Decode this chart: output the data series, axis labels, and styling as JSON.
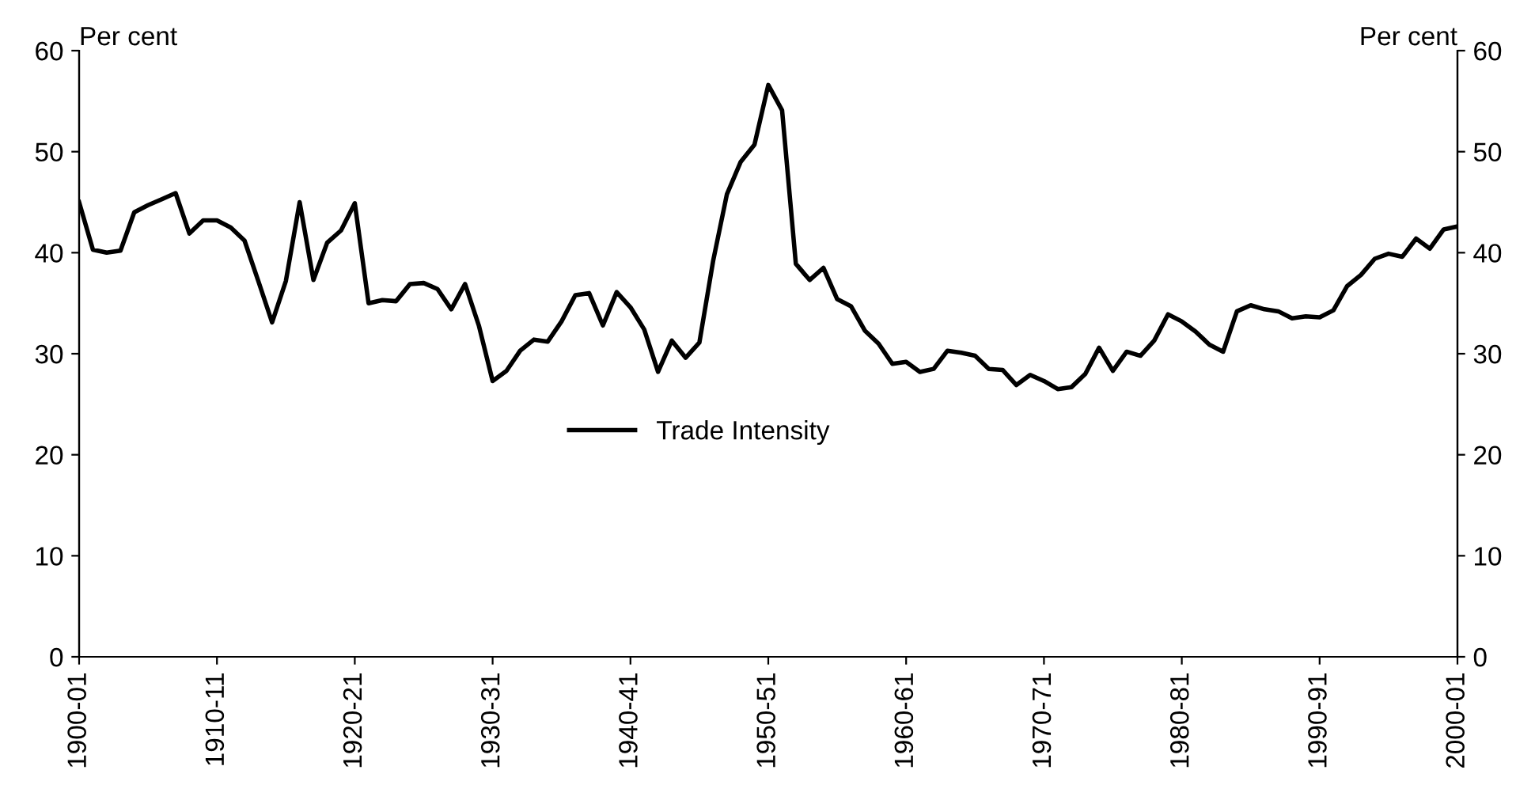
{
  "chart_data": {
    "type": "line",
    "categories": [
      "1900-01",
      null,
      null,
      null,
      null,
      null,
      null,
      null,
      null,
      null,
      "1910-11",
      null,
      null,
      null,
      null,
      null,
      null,
      null,
      null,
      null,
      "1920-21",
      null,
      null,
      null,
      null,
      null,
      null,
      null,
      null,
      null,
      "1930-31",
      null,
      null,
      null,
      null,
      null,
      null,
      null,
      null,
      null,
      "1940-41",
      null,
      null,
      null,
      null,
      null,
      null,
      null,
      null,
      null,
      "1950-51",
      null,
      null,
      null,
      null,
      null,
      null,
      null,
      null,
      null,
      "1960-61",
      null,
      null,
      null,
      null,
      null,
      null,
      null,
      null,
      null,
      "1970-71",
      null,
      null,
      null,
      null,
      null,
      null,
      null,
      null,
      null,
      "1980-81",
      null,
      null,
      null,
      null,
      null,
      null,
      null,
      null,
      null,
      "1990-91",
      null,
      null,
      null,
      null,
      null,
      null,
      null,
      null,
      null,
      "2000-01"
    ],
    "series": [
      {
        "name": "Trade Intensity",
        "color": "#000000",
        "values": [
          45,
          40.3,
          40,
          40.2,
          44,
          44.7,
          45.3,
          45.9,
          41.9,
          43.2,
          43.2,
          42.5,
          41.2,
          37.2,
          33.1,
          37.2,
          45,
          37.3,
          41,
          42.2,
          44.9,
          35,
          35.3,
          35.2,
          36.9,
          37,
          36.4,
          34.4,
          36.9,
          32.8,
          27.3,
          28.3,
          30.3,
          31.4,
          31.2,
          33.2,
          35.8,
          36,
          32.8,
          36.1,
          34.6,
          32.4,
          28.2,
          31.3,
          29.6,
          31.1,
          39.2,
          45.8,
          49,
          50.7,
          56.6,
          54.1,
          38.9,
          37.3,
          38.5,
          35.4,
          34.7,
          32.3,
          31,
          29,
          29.2,
          28.2,
          28.5,
          30.3,
          30.1,
          29.8,
          28.5,
          28.4,
          26.9,
          27.9,
          27.3,
          26.5,
          26.7,
          28,
          30.6,
          28.3,
          30.2,
          29.8,
          31.3,
          33.9,
          33.2,
          32.2,
          30.9,
          30.2,
          34.2,
          34.8,
          34.4,
          34.2,
          33.5,
          33.7,
          33.6,
          34.3,
          36.7,
          37.8,
          39.4,
          39.9,
          39.6,
          41.4,
          40.4,
          42.3,
          42.6
        ]
      }
    ],
    "ylabel": "Per cent",
    "y2label": "Per cent",
    "ylim": [
      0,
      60
    ],
    "yticks": [
      0,
      10,
      20,
      30,
      40,
      50,
      60
    ],
    "y2lim": [
      0,
      60
    ],
    "y2ticks": [
      0,
      10,
      20,
      30,
      40,
      50,
      60
    ],
    "grid": false,
    "legend": "center",
    "marker": "none",
    "line_style": "solid"
  }
}
